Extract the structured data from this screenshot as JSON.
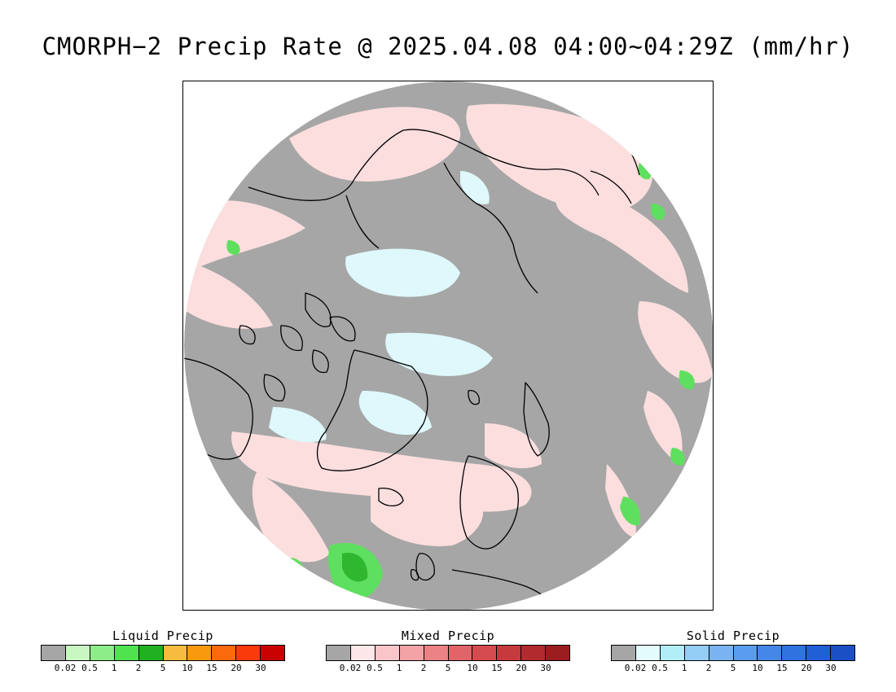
{
  "title": "CMORPH−2 Precip Rate @ 2025.04.08 04:00~04:29Z (mm/hr)",
  "colors": {
    "no_precip": "#a6a6a6",
    "mixed_light": "#fcdede",
    "solid_light": "#def8fb",
    "liquid_green": "#5fdf5f",
    "liquid_dark": "#2fb82f",
    "coastline": "#000000"
  },
  "map": {
    "projection": "north-polar-stereographic",
    "region": "Arctic / Northern Hemisphere high latitudes"
  },
  "legends": [
    {
      "id": "liquid",
      "title": "Liquid Precip",
      "colors": [
        "#a6a6a6",
        "#c9f7c2",
        "#8ded88",
        "#4fe44f",
        "#20b020",
        "#f7bc3e",
        "#f99a0e",
        "#fb6a0c",
        "#fb3a0c",
        "#c90000"
      ],
      "ticks": [
        "0.02",
        "0.5",
        "1",
        "2",
        "5",
        "10",
        "15",
        "20",
        "30"
      ]
    },
    {
      "id": "mixed",
      "title": "Mixed Precip",
      "colors": [
        "#a6a6a6",
        "#fde6e8",
        "#f9c5c8",
        "#f3a3a6",
        "#ec8286",
        "#e06468",
        "#d64b4f",
        "#c63a3e",
        "#b12a2d",
        "#9c1d20"
      ],
      "ticks": [
        "0.02",
        "0.5",
        "1",
        "2",
        "5",
        "10",
        "15",
        "20",
        "30"
      ]
    },
    {
      "id": "solid",
      "title": "Solid Precip",
      "colors": [
        "#a6a6a6",
        "#e3fbfd",
        "#b2eef8",
        "#94cdf6",
        "#79b3f2",
        "#5a9cee",
        "#4487e8",
        "#2e73e0",
        "#215fd6",
        "#1b4fc6"
      ],
      "ticks": [
        "0.02",
        "0.5",
        "1",
        "2",
        "5",
        "10",
        "15",
        "20",
        "30"
      ]
    }
  ]
}
